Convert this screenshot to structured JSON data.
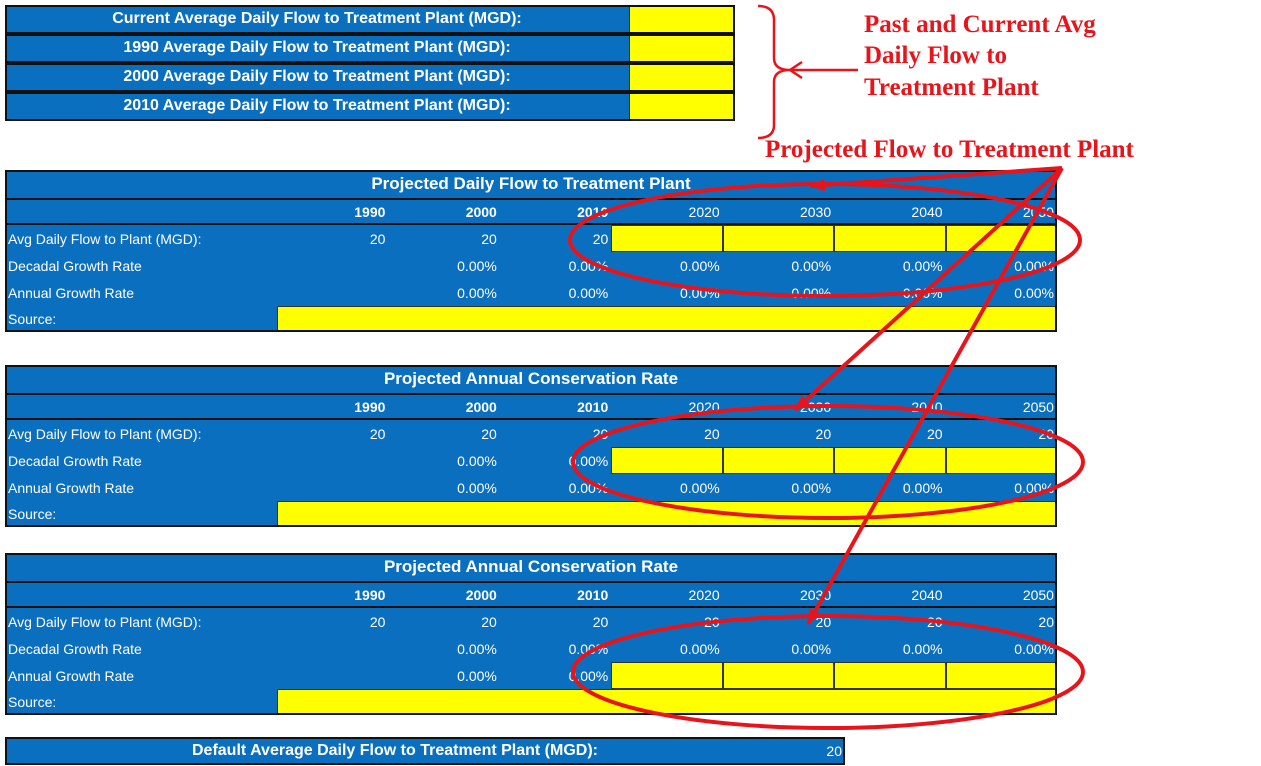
{
  "top_fields": [
    {
      "label": "Current Average Daily Flow to Treatment Plant (MGD):"
    },
    {
      "label": "1990 Average Daily Flow to Treatment Plant (MGD):"
    },
    {
      "label": "2000 Average Daily Flow to Treatment Plant (MGD):"
    },
    {
      "label": "2010 Average Daily Flow to Treatment Plant (MGD):"
    }
  ],
  "annotations": {
    "past_current": [
      "Past and Current Avg",
      "Daily Flow to",
      "Treatment Plant"
    ],
    "projected": "Projected Flow to Treatment Plant"
  },
  "tables": [
    {
      "title": "Projected Daily Flow to Treatment Plant",
      "years": [
        1990,
        2000,
        2010,
        2020,
        2030,
        2040,
        2050
      ],
      "rows": [
        {
          "label": "Avg Daily Flow to Plant (MGD):",
          "values": [
            20,
            20,
            20,
            null,
            null,
            null,
            null
          ]
        },
        {
          "label": "Decadal Growth Rate",
          "values": [
            null,
            "0.00%",
            "0.00%",
            "0.00%",
            "0.00%",
            "0.00%",
            "0.00%"
          ]
        },
        {
          "label": "Annual Growth Rate",
          "values": [
            null,
            "0.00%",
            "0.00%",
            "0.00%",
            "0.00%",
            "0.00%",
            "0.00%"
          ]
        }
      ],
      "source_label": "Source:"
    },
    {
      "title": "Projected Annual Conservation Rate",
      "years": [
        1990,
        2000,
        2010,
        2020,
        2030,
        2040,
        2050
      ],
      "rows": [
        {
          "label": "Avg Daily Flow to Plant (MGD):",
          "values": [
            20,
            20,
            20,
            20,
            20,
            20,
            20
          ]
        },
        {
          "label": "Decadal Growth Rate",
          "values": [
            null,
            "0.00%",
            "0.00%",
            null,
            null,
            null,
            null
          ]
        },
        {
          "label": "Annual Growth Rate",
          "values": [
            null,
            "0.00%",
            "0.00%",
            "0.00%",
            "0.00%",
            "0.00%",
            "0.00%"
          ]
        }
      ],
      "source_label": "Source:"
    },
    {
      "title": "Projected Annual Conservation Rate",
      "years": [
        1990,
        2000,
        2010,
        2020,
        2030,
        2040,
        2050
      ],
      "rows": [
        {
          "label": "Avg Daily Flow to Plant (MGD):",
          "values": [
            20,
            20,
            20,
            20,
            20,
            20,
            20
          ]
        },
        {
          "label": "Decadal Growth Rate",
          "values": [
            null,
            "0.00%",
            "0.00%",
            "0.00%",
            "0.00%",
            "0.00%",
            "0.00%"
          ]
        },
        {
          "label": "Annual Growth Rate",
          "values": [
            null,
            "0.00%",
            "0.00%",
            null,
            null,
            null,
            null
          ]
        }
      ],
      "source_label": "Source:"
    }
  ],
  "default_field": {
    "label": "Default Average Daily Flow to Treatment Plant (MGD):",
    "value": 20
  }
}
